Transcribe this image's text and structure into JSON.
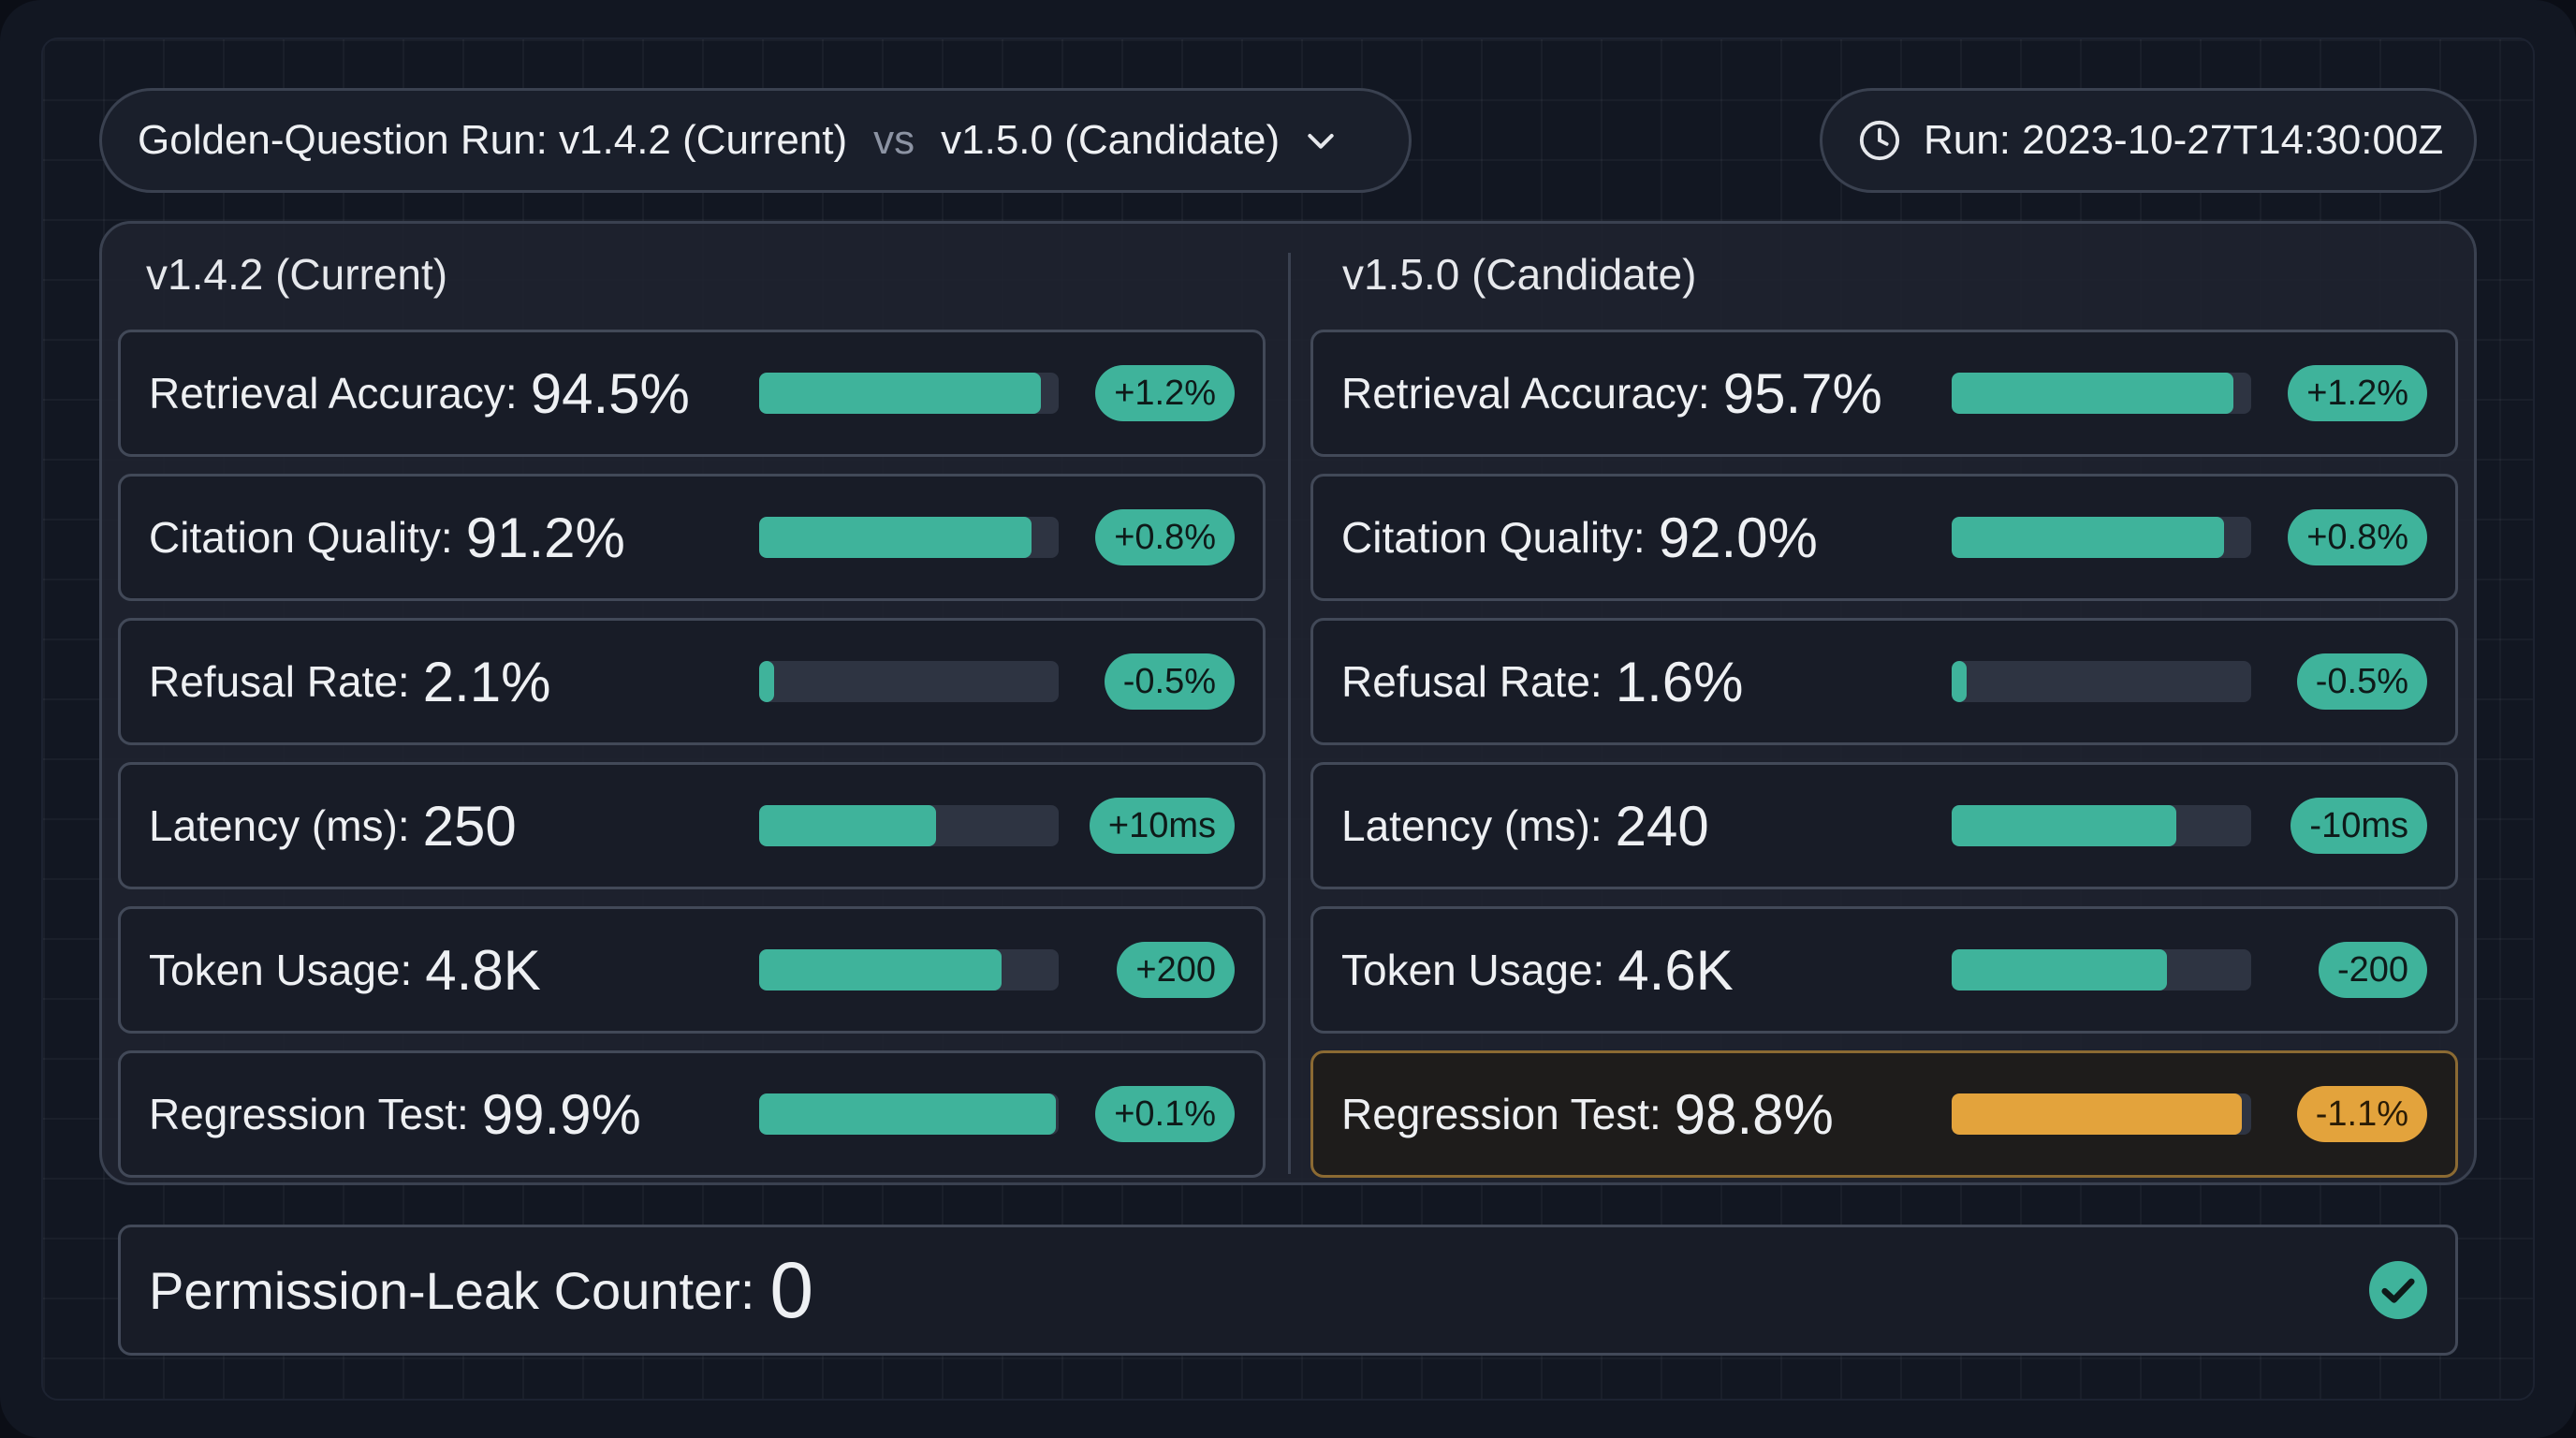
{
  "header": {
    "run_prefix": "Golden-Question Run: v1.4.2 (Current)",
    "vs": "vs",
    "run_candidate": "v1.5.0 (Candidate)",
    "run_timestamp": "Run: 2023-10-27T14:30:00Z"
  },
  "left": {
    "title": "v1.4.2 (Current)",
    "metrics": [
      {
        "label": "Retrieval Accuracy:",
        "value": "94.5%",
        "delta": "+1.2%",
        "level": 0.94
      },
      {
        "label": "Citation Quality:",
        "value": "91.2%",
        "delta": "+0.8%",
        "level": 0.91
      },
      {
        "label": "Refusal Rate:",
        "value": "2.1%",
        "delta": "-0.5%",
        "level": 0.05
      },
      {
        "label": "Latency (ms):",
        "value": "250",
        "delta": "+10ms",
        "level": 0.59
      },
      {
        "label": "Token Usage:",
        "value": "4.8K",
        "delta": "+200",
        "level": 0.81
      },
      {
        "label": "Regression Test:",
        "value": "99.9%",
        "delta": "+0.1%",
        "level": 0.99
      }
    ]
  },
  "right": {
    "title": "v1.5.0 (Candidate)",
    "metrics": [
      {
        "label": "Retrieval Accuracy:",
        "value": "95.7%",
        "delta": "+1.2%",
        "level": 0.94
      },
      {
        "label": "Citation Quality:",
        "value": "92.0%",
        "delta": "+0.8%",
        "level": 0.91
      },
      {
        "label": "Refusal Rate:",
        "value": "1.6%",
        "delta": "-0.5%",
        "level": 0.05
      },
      {
        "label": "Latency (ms):",
        "value": "240",
        "delta": "-10ms",
        "level": 0.75
      },
      {
        "label": "Token Usage:",
        "value": "4.6K",
        "delta": "-200",
        "level": 0.72
      },
      {
        "label": "Regression Test:",
        "value": "98.8%",
        "delta": "-1.1%",
        "level": 0.97,
        "status": "warning"
      }
    ]
  },
  "leak": {
    "label": "Permission-Leak Counter:",
    "value": "0",
    "icon": "check-circle-icon"
  },
  "colors": {
    "accent": "#3fb39b",
    "warning": "#e3a33c",
    "background": "#121722"
  }
}
